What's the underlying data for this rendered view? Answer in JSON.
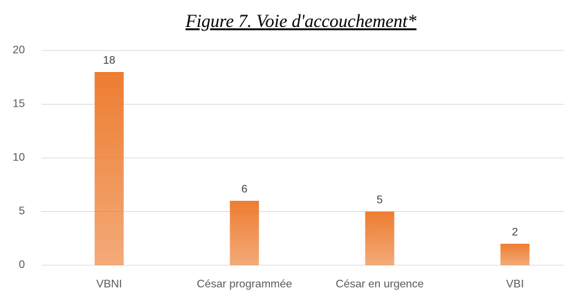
{
  "chart_data": {
    "type": "bar",
    "title": "Figure 7. Voie d'accouchement*",
    "categories": [
      "VBNI",
      "César programmée",
      "César en urgence",
      "VBI"
    ],
    "values": [
      18,
      6,
      5,
      2
    ],
    "color": "#ed7d31",
    "ylim": [
      0,
      20
    ],
    "yticks": [
      0,
      5,
      10,
      15,
      20
    ],
    "grid": true
  }
}
